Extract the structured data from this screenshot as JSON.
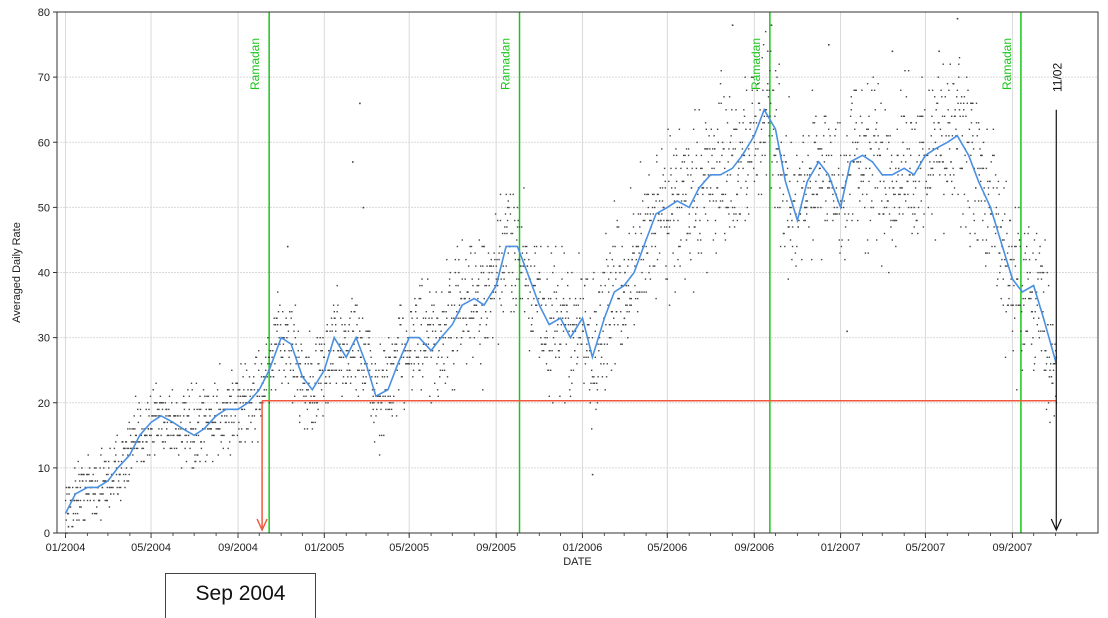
{
  "chart_data": {
    "type": "scatter",
    "title": "",
    "xlabel": "DATE",
    "ylabel": "Averaged Daily Rate",
    "xlim": [
      "2003-12-20",
      "2007-12-31"
    ],
    "ylim": [
      0,
      80
    ],
    "grid": true,
    "x_ticks": [
      "01/2004",
      "05/2004",
      "09/2004",
      "01/2005",
      "05/2005",
      "09/2005",
      "01/2006",
      "05/2006",
      "09/2006",
      "01/2007",
      "05/2007",
      "09/2007"
    ],
    "y_ticks": [
      0,
      10,
      20,
      30,
      40,
      50,
      60,
      70,
      80
    ],
    "series": [
      {
        "kind": "moving-average-line",
        "color": "#4a90e2",
        "points": [
          [
            "2004-01-01",
            3
          ],
          [
            "2004-01-15",
            6
          ],
          [
            "2004-02-01",
            7
          ],
          [
            "2004-02-15",
            7
          ],
          [
            "2004-03-01",
            8
          ],
          [
            "2004-03-15",
            10
          ],
          [
            "2004-04-01",
            12
          ],
          [
            "2004-04-15",
            15
          ],
          [
            "2004-05-01",
            17
          ],
          [
            "2004-05-15",
            18
          ],
          [
            "2004-06-01",
            17
          ],
          [
            "2004-06-15",
            16
          ],
          [
            "2004-07-01",
            15
          ],
          [
            "2004-07-15",
            16
          ],
          [
            "2004-08-01",
            18
          ],
          [
            "2004-08-15",
            19
          ],
          [
            "2004-09-01",
            19
          ],
          [
            "2004-09-15",
            20
          ],
          [
            "2004-10-01",
            22
          ],
          [
            "2004-10-15",
            25
          ],
          [
            "2004-11-01",
            30
          ],
          [
            "2004-11-15",
            29
          ],
          [
            "2004-12-01",
            24
          ],
          [
            "2004-12-15",
            22
          ],
          [
            "2005-01-01",
            25
          ],
          [
            "2005-01-15",
            30
          ],
          [
            "2005-02-01",
            27
          ],
          [
            "2005-02-15",
            30
          ],
          [
            "2005-03-01",
            26
          ],
          [
            "2005-03-15",
            21
          ],
          [
            "2005-04-01",
            22
          ],
          [
            "2005-04-15",
            26
          ],
          [
            "2005-05-01",
            30
          ],
          [
            "2005-05-15",
            30
          ],
          [
            "2005-06-01",
            28
          ],
          [
            "2005-06-15",
            30
          ],
          [
            "2005-07-01",
            32
          ],
          [
            "2005-07-15",
            35
          ],
          [
            "2005-08-01",
            36
          ],
          [
            "2005-08-15",
            35
          ],
          [
            "2005-09-01",
            38
          ],
          [
            "2005-09-15",
            44
          ],
          [
            "2005-10-01",
            44
          ],
          [
            "2005-10-15",
            40
          ],
          [
            "2005-11-01",
            35
          ],
          [
            "2005-11-15",
            32
          ],
          [
            "2005-12-01",
            33
          ],
          [
            "2005-12-15",
            30
          ],
          [
            "2006-01-01",
            33
          ],
          [
            "2006-01-15",
            27
          ],
          [
            "2006-02-01",
            33
          ],
          [
            "2006-02-15",
            37
          ],
          [
            "2006-03-01",
            38
          ],
          [
            "2006-03-15",
            40
          ],
          [
            "2006-04-01",
            45
          ],
          [
            "2006-04-15",
            49
          ],
          [
            "2006-05-01",
            50
          ],
          [
            "2006-05-15",
            51
          ],
          [
            "2006-06-01",
            50
          ],
          [
            "2006-06-15",
            53
          ],
          [
            "2006-07-01",
            55
          ],
          [
            "2006-07-15",
            55
          ],
          [
            "2006-08-01",
            56
          ],
          [
            "2006-08-15",
            58
          ],
          [
            "2006-09-01",
            61
          ],
          [
            "2006-09-15",
            65
          ],
          [
            "2006-10-01",
            62
          ],
          [
            "2006-10-15",
            54
          ],
          [
            "2006-11-01",
            48
          ],
          [
            "2006-11-15",
            54
          ],
          [
            "2006-12-01",
            57
          ],
          [
            "2006-12-15",
            55
          ],
          [
            "2007-01-01",
            50
          ],
          [
            "2007-01-15",
            57
          ],
          [
            "2007-02-01",
            58
          ],
          [
            "2007-02-15",
            57
          ],
          [
            "2007-03-01",
            55
          ],
          [
            "2007-03-15",
            55
          ],
          [
            "2007-04-01",
            56
          ],
          [
            "2007-04-15",
            55
          ],
          [
            "2007-05-01",
            58
          ],
          [
            "2007-05-15",
            59
          ],
          [
            "2007-06-01",
            60
          ],
          [
            "2007-06-15",
            61
          ],
          [
            "2007-07-01",
            58
          ],
          [
            "2007-07-15",
            54
          ],
          [
            "2007-08-01",
            50
          ],
          [
            "2007-08-15",
            45
          ],
          [
            "2007-09-01",
            39
          ],
          [
            "2007-09-15",
            37
          ],
          [
            "2007-10-01",
            38
          ],
          [
            "2007-10-15",
            33
          ],
          [
            "2007-11-02",
            26
          ]
        ]
      },
      {
        "kind": "daily-scatter",
        "color": "#444444",
        "density_per_segment": 6,
        "trend_points_ref": "moving-average-line",
        "spread": [
          [
            "2004-01-01",
            5
          ],
          [
            "2004-09-01",
            7
          ],
          [
            "2005-09-01",
            11
          ],
          [
            "2006-09-01",
            13
          ],
          [
            "2007-09-01",
            13
          ],
          [
            "2007-11-02",
            12
          ]
        ],
        "outliers": [
          [
            "2005-02-20",
            66
          ],
          [
            "2005-02-10",
            57
          ],
          [
            "2005-02-25",
            50
          ],
          [
            "2006-09-25",
            78
          ],
          [
            "2006-08-01",
            78
          ],
          [
            "2006-12-15",
            75
          ],
          [
            "2007-06-15",
            79
          ],
          [
            "2007-03-15",
            74
          ],
          [
            "2007-05-20",
            74
          ],
          [
            "2004-01-05",
            1
          ],
          [
            "2006-01-15",
            9
          ],
          [
            "2006-03-01",
            33
          ],
          [
            "2004-11-10",
            44
          ],
          [
            "2007-01-10",
            31
          ]
        ]
      }
    ],
    "annotations": {
      "ramadan_lines": [
        {
          "date": "2004-10-15",
          "label": "Ramadan"
        },
        {
          "date": "2005-10-04",
          "label": "Ramadan"
        },
        {
          "date": "2006-09-23",
          "label": "Ramadan"
        },
        {
          "date": "2007-09-13",
          "label": "Ramadan"
        }
      ],
      "threshold": {
        "value": 20.3,
        "from": "2004-10-05",
        "to": "2007-11-02",
        "color": "#f0593e"
      },
      "start_arrow": {
        "date": "2004-10-05",
        "color": "#f0593e"
      },
      "end_arrow": {
        "date": "2007-11-02",
        "label": "11/02",
        "color": "#111111"
      },
      "line_color": "#19c719"
    }
  },
  "callout": {
    "text": "Sep 2004"
  }
}
